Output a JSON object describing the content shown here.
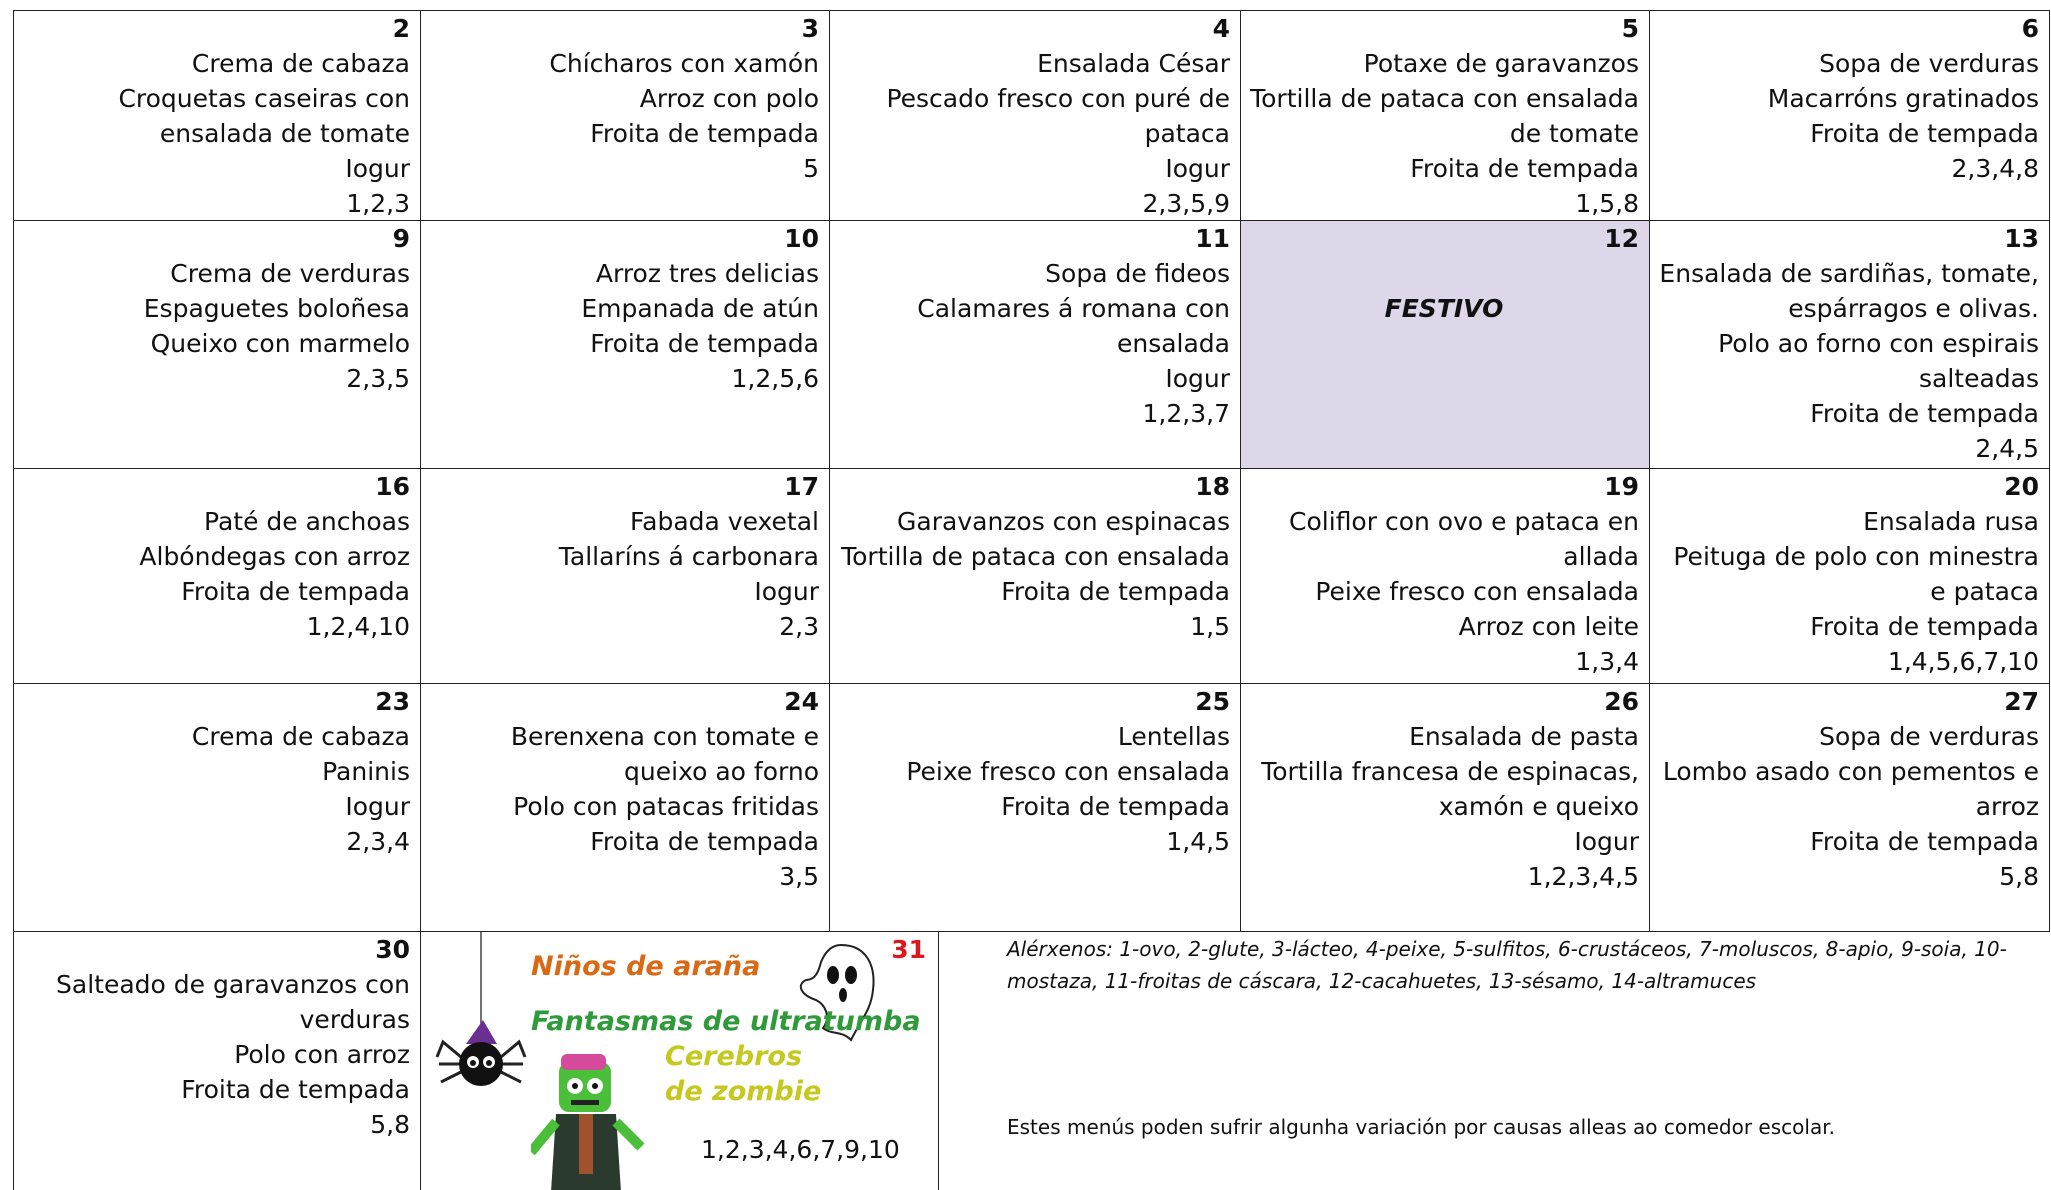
{
  "weeks": [
    [
      {
        "day": 2,
        "menu": [
          "Crema de cabaza",
          "Croquetas caseiras con ensalada de tomate",
          "Iogur"
        ],
        "allergens": "1,2,3"
      },
      {
        "day": 3,
        "menu": [
          "Chícharos con xamón",
          "Arroz con polo",
          "Froita de tempada"
        ],
        "allergens": "5"
      },
      {
        "day": 4,
        "menu": [
          "Ensalada César",
          "Pescado fresco con puré de pataca",
          "Iogur"
        ],
        "allergens": "2,3,5,9"
      },
      {
        "day": 5,
        "menu": [
          "Potaxe de garavanzos",
          "Tortilla de pataca con ensalada de tomate",
          "Froita de tempada"
        ],
        "allergens": "1,5,8"
      },
      {
        "day": 6,
        "menu": [
          "Sopa de verduras",
          "Macarróns gratinados",
          "Froita de tempada"
        ],
        "allergens": "2,3,4,8"
      }
    ],
    [
      {
        "day": 9,
        "menu": [
          "Crema de verduras",
          "Espaguetes boloñesa",
          "Queixo con marmelo"
        ],
        "allergens": "2,3,5"
      },
      {
        "day": 10,
        "menu": [
          "Arroz tres delicias",
          "Empanada de atún",
          "Froita de tempada"
        ],
        "allergens": "1,2,5,6"
      },
      {
        "day": 11,
        "menu": [
          "Sopa de fideos",
          "Calamares á romana con ensalada",
          "Iogur"
        ],
        "allergens": "1,2,3,7"
      },
      {
        "day": 12,
        "note": "FESTIVO"
      },
      {
        "day": 13,
        "menu": [
          "Ensalada de sardiñas, tomate, espárragos e olivas.",
          "Polo ao forno con espirais salteadas",
          "Froita de tempada"
        ],
        "allergens": "2,4,5"
      }
    ],
    [
      {
        "day": 16,
        "menu": [
          "Paté de anchoas",
          "Albóndegas con arroz",
          "Froita de tempada"
        ],
        "allergens": "1,2,4,10"
      },
      {
        "day": 17,
        "menu": [
          "Fabada vexetal",
          "Tallaríns á carbonara",
          "Iogur"
        ],
        "allergens": "2,3"
      },
      {
        "day": 18,
        "menu": [
          "Garavanzos con espinacas",
          "Tortilla de pataca con ensalada",
          "Froita de tempada"
        ],
        "allergens": "1,5"
      },
      {
        "day": 19,
        "menu": [
          "Coliflor con ovo e pataca en allada",
          "Peixe fresco con ensalada",
          "Arroz con leite"
        ],
        "allergens": "1,3,4"
      },
      {
        "day": 20,
        "menu": [
          "Ensalada rusa",
          "Peituga de polo con minestra e pataca",
          "Froita de tempada"
        ],
        "allergens": "1,4,5,6,7,10"
      }
    ],
    [
      {
        "day": 23,
        "menu": [
          "Crema de cabaza",
          "Paninis",
          "Iogur"
        ],
        "allergens": "2,3,4"
      },
      {
        "day": 24,
        "menu": [
          "Berenxena con tomate e queixo ao forno",
          "Polo con patacas fritidas",
          "Froita de tempada"
        ],
        "allergens": "3,5"
      },
      {
        "day": 25,
        "menu": [
          "Lentellas",
          "Peixe fresco con ensalada",
          "Froita de tempada"
        ],
        "allergens": "1,4,5"
      },
      {
        "day": 26,
        "menu": [
          "Ensalada de pasta",
          "Tortilla francesa de espinacas, xamón e queixo",
          "Iogur"
        ],
        "allergens": "1,2,3,4,5"
      },
      {
        "day": 27,
        "menu": [
          "Sopa de verduras",
          "Lombo asado con pementos e arroz",
          "Froita de tempada"
        ],
        "allergens": "5,8"
      }
    ]
  ],
  "day30": {
    "day": 30,
    "menu": [
      "Salteado de garavanzos con verduras",
      "Polo con arroz",
      "Froita de tempada"
    ],
    "allergens": "5,8"
  },
  "day31": {
    "day": 31,
    "titles": [
      "Niños de araña",
      "Fantasmas de ultratumba",
      "Cerebros de zombie"
    ],
    "allergens": "1,2,3,4,6,7,9,10"
  },
  "allergen_legend": "Alérxenos: 1-ovo, 2-glute, 3-lácteo, 4-peixe, 5-sulfitos, 6-crustáceos, 7-moluscos, 8-apio, 9-soia, 10-mostaza, 11-froitas de cáscara, 12-cacahuetes, 13-sésamo, 14-altramuces",
  "footer_note": "Estes menús poden sufrir algunha variación por causas alleas ao comedor escolar."
}
